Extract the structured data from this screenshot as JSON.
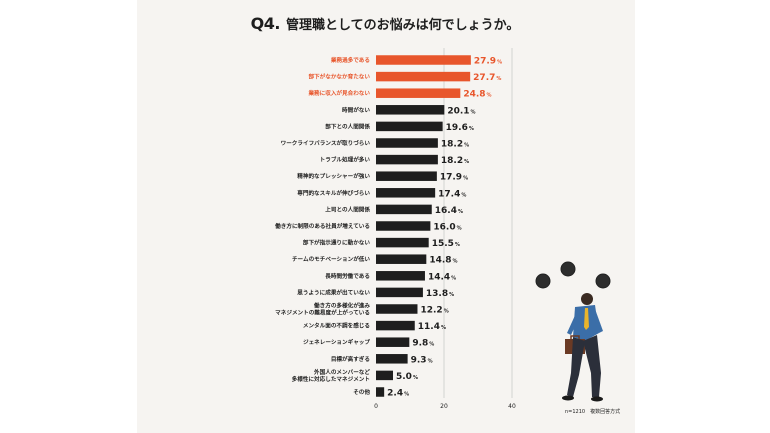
{
  "title": {
    "number": "Q4.",
    "text": "管理職としてのお悩みは何でしょうか。"
  },
  "note": "n=1210　複数回答方式",
  "colors": {
    "highlight": "#e8562c",
    "bar": "#1e1e1e",
    "text": "#1e1e1e",
    "grid": "#bdbdbd"
  },
  "chart_data": {
    "type": "bar",
    "orientation": "horizontal",
    "categories": [
      "業務過多である",
      "部下がなかなか育たない",
      "業務に収入が見合わない",
      "時間がない",
      "部下との人間関係",
      "ワークライフバランスが取りづらい",
      "トラブル処理が多い",
      "精神的なプレッシャーが強い",
      "専門的なスキルが伸びづらい",
      "上司との人間関係",
      "働き方に制限のある社員が増えている",
      "部下が指示通りに動かない",
      "チームのモチベーションが低い",
      "長時間労働である",
      "思うように成果が出ていない",
      "働き方の多様化が進み\nマネジメントの難易度が上がっている",
      "メンタル面の不調を感じる",
      "ジェネレーションギャップ",
      "目標が高すぎる",
      "外国人のメンバーなど\n多様性に対応したマネジメント",
      "その他"
    ],
    "values": [
      27.9,
      27.7,
      24.8,
      20.1,
      19.6,
      18.2,
      18.2,
      17.9,
      17.4,
      16.4,
      16.0,
      15.5,
      14.8,
      14.4,
      13.8,
      12.2,
      11.4,
      9.8,
      9.3,
      5.0,
      2.4
    ],
    "value_labels": [
      "27.9",
      "27.7",
      "24.8",
      "20.1",
      "19.6",
      "18.2",
      "18.2",
      "17.9",
      "17.4",
      "16.4",
      "16.0",
      "15.5",
      "14.8",
      "14.4",
      "13.8",
      "12.2",
      "11.4",
      "9.8",
      "9.3",
      "5.0",
      "2.4"
    ],
    "unit": "%",
    "highlighted": [
      0,
      1,
      2
    ],
    "xlim": [
      0,
      40
    ],
    "xticks": [
      "0",
      "20",
      "40"
    ],
    "gridlines": [
      20,
      40
    ]
  }
}
